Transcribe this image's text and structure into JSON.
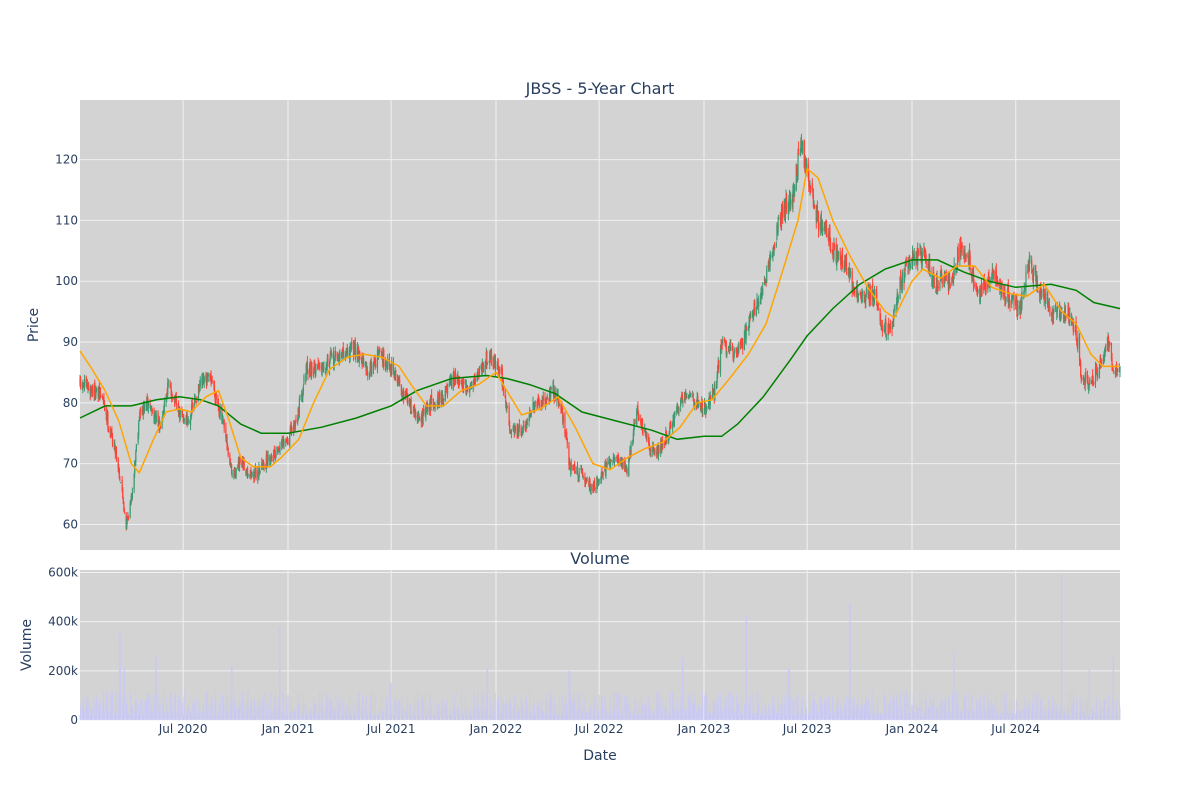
{
  "colors": {
    "plot_bg": "#d3d3d3",
    "grid": "#eef0f4",
    "text": "#2a3f5f",
    "up": "#3d9970",
    "down": "#ff4136",
    "ma_short": "#ffa500",
    "ma_long": "#008000",
    "volume": "#c9c9f2"
  },
  "chart_data": [
    {
      "type": "candlestick",
      "title": "JBSS - 5-Year Chart",
      "xlabel": "",
      "ylabel": "Price",
      "xlim": [
        "2020-01-02",
        "2024-12-31"
      ],
      "ylim": [
        55.8,
        129.8
      ],
      "grid": true,
      "x_ticks": [
        "2020-07-01",
        "2021-01-01",
        "2021-07-01",
        "2022-01-01",
        "2022-07-01",
        "2023-01-01",
        "2023-07-01",
        "2024-01-01",
        "2024-07-01"
      ],
      "y_ticks": [
        60,
        70,
        80,
        90,
        100,
        110,
        120
      ],
      "y_tick_labels": [
        "60",
        "70",
        "80",
        "90",
        "100",
        "110",
        "120"
      ],
      "close_path": [
        [
          "2020-01-02",
          83
        ],
        [
          "2020-01-25",
          82
        ],
        [
          "2020-02-10",
          81
        ],
        [
          "2020-02-25",
          75
        ],
        [
          "2020-03-05",
          72
        ],
        [
          "2020-03-15",
          66
        ],
        [
          "2020-03-23",
          60
        ],
        [
          "2020-04-01",
          64
        ],
        [
          "2020-04-15",
          78
        ],
        [
          "2020-05-01",
          80
        ],
        [
          "2020-05-20",
          76
        ],
        [
          "2020-06-05",
          83
        ],
        [
          "2020-06-25",
          78
        ],
        [
          "2020-07-10",
          77
        ],
        [
          "2020-08-01",
          83
        ],
        [
          "2020-08-20",
          84
        ],
        [
          "2020-09-10",
          76
        ],
        [
          "2020-09-25",
          68
        ],
        [
          "2020-10-10",
          70
        ],
        [
          "2020-11-01",
          68
        ],
        [
          "2020-11-20",
          70
        ],
        [
          "2020-12-10",
          72
        ],
        [
          "2021-01-01",
          74
        ],
        [
          "2021-01-15",
          77
        ],
        [
          "2021-02-01",
          85
        ],
        [
          "2021-02-20",
          86
        ],
        [
          "2021-03-15",
          87
        ],
        [
          "2021-04-10",
          88
        ],
        [
          "2021-05-01",
          89
        ],
        [
          "2021-05-20",
          85
        ],
        [
          "2021-06-10",
          88
        ],
        [
          "2021-07-01",
          86
        ],
        [
          "2021-07-15",
          83
        ],
        [
          "2021-08-01",
          80
        ],
        [
          "2021-08-20",
          77
        ],
        [
          "2021-09-10",
          80
        ],
        [
          "2021-10-01",
          81
        ],
        [
          "2021-10-20",
          84
        ],
        [
          "2021-11-10",
          82
        ],
        [
          "2021-12-01",
          85
        ],
        [
          "2021-12-20",
          88
        ],
        [
          "2022-01-10",
          85
        ],
        [
          "2022-01-25",
          76
        ],
        [
          "2022-02-15",
          75
        ],
        [
          "2022-03-05",
          79
        ],
        [
          "2022-03-25",
          80
        ],
        [
          "2022-04-10",
          82
        ],
        [
          "2022-04-25",
          80
        ],
        [
          "2022-05-10",
          70
        ],
        [
          "2022-06-01",
          68
        ],
        [
          "2022-06-20",
          66
        ],
        [
          "2022-07-10",
          69
        ],
        [
          "2022-08-01",
          71
        ],
        [
          "2022-08-20",
          69
        ],
        [
          "2022-09-05",
          79
        ],
        [
          "2022-09-25",
          73
        ],
        [
          "2022-10-10",
          72
        ],
        [
          "2022-11-01",
          75
        ],
        [
          "2022-11-15",
          79
        ],
        [
          "2022-12-01",
          82
        ],
        [
          "2022-12-20",
          80
        ],
        [
          "2023-01-05",
          79
        ],
        [
          "2023-01-20",
          82
        ],
        [
          "2023-02-01",
          90
        ],
        [
          "2023-02-20",
          88
        ],
        [
          "2023-03-10",
          90
        ],
        [
          "2023-03-25",
          95
        ],
        [
          "2023-04-15",
          98
        ],
        [
          "2023-05-01",
          105
        ],
        [
          "2023-05-20",
          112
        ],
        [
          "2023-06-05",
          113
        ],
        [
          "2023-06-20",
          123
        ],
        [
          "2023-07-05",
          116
        ],
        [
          "2023-07-20",
          110
        ],
        [
          "2023-08-05",
          108
        ],
        [
          "2023-08-20",
          104
        ],
        [
          "2023-09-05",
          103
        ],
        [
          "2023-09-20",
          99
        ],
        [
          "2023-10-05",
          97
        ],
        [
          "2023-10-25",
          98
        ],
        [
          "2023-11-10",
          93
        ],
        [
          "2023-11-25",
          92
        ],
        [
          "2023-12-10",
          99
        ],
        [
          "2023-12-25",
          103
        ],
        [
          "2024-01-10",
          104
        ],
        [
          "2024-01-25",
          104
        ],
        [
          "2024-02-10",
          99
        ],
        [
          "2024-02-25",
          101
        ],
        [
          "2024-03-10",
          99
        ],
        [
          "2024-03-25",
          106
        ],
        [
          "2024-04-10",
          104
        ],
        [
          "2024-04-25",
          97
        ],
        [
          "2024-05-10",
          100
        ],
        [
          "2024-05-25",
          101
        ],
        [
          "2024-06-10",
          98
        ],
        [
          "2024-06-25",
          97
        ],
        [
          "2024-07-10",
          96
        ],
        [
          "2024-07-25",
          103
        ],
        [
          "2024-08-10",
          99
        ],
        [
          "2024-08-20",
          98
        ],
        [
          "2024-09-01",
          94
        ],
        [
          "2024-09-15",
          95
        ],
        [
          "2024-10-01",
          95
        ],
        [
          "2024-10-15",
          92
        ],
        [
          "2024-10-25",
          84
        ],
        [
          "2024-11-10",
          83
        ],
        [
          "2024-11-25",
          86
        ],
        [
          "2024-12-10",
          90
        ],
        [
          "2024-12-20",
          85
        ],
        [
          "2024-12-31",
          85
        ]
      ],
      "series": [
        {
          "values": [
            [
              "2020-01-02",
              88.5
            ],
            [
              "2020-01-20",
              86
            ],
            [
              "2020-02-15",
              82
            ],
            [
              "2020-03-10",
              77
            ],
            [
              "2020-04-01",
              70
            ],
            [
              "2020-04-15",
              68.5
            ],
            [
              "2020-05-10",
              74
            ],
            [
              "2020-06-01",
              78.5
            ],
            [
              "2020-06-25",
              79
            ],
            [
              "2020-07-15",
              78.5
            ],
            [
              "2020-08-10",
              81
            ],
            [
              "2020-09-01",
              82
            ],
            [
              "2020-09-20",
              77
            ],
            [
              "2020-10-10",
              71
            ],
            [
              "2020-11-01",
              69.5
            ],
            [
              "2020-12-01",
              69.5
            ],
            [
              "2020-12-20",
              71
            ],
            [
              "2021-01-20",
              74
            ],
            [
              "2021-02-15",
              80
            ],
            [
              "2021-03-15",
              85.5
            ],
            [
              "2021-04-15",
              87.5
            ],
            [
              "2021-05-15",
              88
            ],
            [
              "2021-06-15",
              87.5
            ],
            [
              "2021-07-15",
              86
            ],
            [
              "2021-08-05",
              83
            ],
            [
              "2021-09-01",
              79.5
            ],
            [
              "2021-10-01",
              79.5
            ],
            [
              "2021-11-01",
              82
            ],
            [
              "2021-12-01",
              83
            ],
            [
              "2022-01-01",
              85
            ],
            [
              "2022-01-20",
              82
            ],
            [
              "2022-02-15",
              78
            ],
            [
              "2022-03-20",
              79
            ],
            [
              "2022-04-20",
              81
            ],
            [
              "2022-05-20",
              76
            ],
            [
              "2022-06-20",
              70
            ],
            [
              "2022-07-20",
              69
            ],
            [
              "2022-08-20",
              71
            ],
            [
              "2022-09-20",
              72.5
            ],
            [
              "2022-10-20",
              73.5
            ],
            [
              "2022-11-20",
              76
            ],
            [
              "2022-12-20",
              80
            ],
            [
              "2023-01-15",
              80.5
            ],
            [
              "2023-02-15",
              84
            ],
            [
              "2023-03-20",
              88
            ],
            [
              "2023-04-20",
              93
            ],
            [
              "2023-05-20",
              102
            ],
            [
              "2023-06-15",
              110
            ],
            [
              "2023-07-01",
              118.5
            ],
            [
              "2023-07-20",
              117
            ],
            [
              "2023-08-15",
              110
            ],
            [
              "2023-09-15",
              104
            ],
            [
              "2023-10-15",
              99
            ],
            [
              "2023-11-15",
              95
            ],
            [
              "2023-12-01",
              94
            ],
            [
              "2024-01-01",
              100
            ],
            [
              "2024-01-20",
              102
            ],
            [
              "2024-02-20",
              100.5
            ],
            [
              "2024-03-20",
              102.5
            ],
            [
              "2024-04-20",
              102.5
            ],
            [
              "2024-05-20",
              99
            ],
            [
              "2024-06-20",
              98
            ],
            [
              "2024-07-20",
              97.5
            ],
            [
              "2024-08-20",
              99.5
            ],
            [
              "2024-09-20",
              95
            ],
            [
              "2024-10-15",
              93
            ],
            [
              "2024-11-10",
              88
            ],
            [
              "2024-12-01",
              86
            ],
            [
              "2024-12-31",
              86
            ]
          ]
        },
        {
          "values": [
            [
              "2020-01-02",
              77.5
            ],
            [
              "2020-02-15",
              79.5
            ],
            [
              "2020-04-01",
              79.5
            ],
            [
              "2020-05-15",
              80.5
            ],
            [
              "2020-06-25",
              81
            ],
            [
              "2020-08-01",
              80.5
            ],
            [
              "2020-09-01",
              79.5
            ],
            [
              "2020-10-10",
              76.5
            ],
            [
              "2020-11-15",
              75
            ],
            [
              "2021-01-01",
              75
            ],
            [
              "2021-03-01",
              76
            ],
            [
              "2021-05-01",
              77.5
            ],
            [
              "2021-07-01",
              79.5
            ],
            [
              "2021-08-15",
              82
            ],
            [
              "2021-10-15",
              84
            ],
            [
              "2021-12-15",
              84.5
            ],
            [
              "2022-01-20",
              84
            ],
            [
              "2022-03-01",
              83
            ],
            [
              "2022-04-15",
              81.5
            ],
            [
              "2022-06-01",
              78.5
            ],
            [
              "2022-08-01",
              77
            ],
            [
              "2022-10-01",
              75.5
            ],
            [
              "2022-11-15",
              74
            ],
            [
              "2023-01-01",
              74.5
            ],
            [
              "2023-02-01",
              74.5
            ],
            [
              "2023-03-01",
              76.5
            ],
            [
              "2023-04-15",
              81
            ],
            [
              "2023-06-01",
              87
            ],
            [
              "2023-07-01",
              91
            ],
            [
              "2023-08-15",
              95.5
            ],
            [
              "2023-10-01",
              99.5
            ],
            [
              "2023-11-15",
              102
            ],
            [
              "2024-01-01",
              103.5
            ],
            [
              "2024-02-15",
              103.5
            ],
            [
              "2024-04-01",
              101.5
            ],
            [
              "2024-05-15",
              100
            ],
            [
              "2024-07-01",
              99
            ],
            [
              "2024-09-01",
              99.5
            ],
            [
              "2024-10-15",
              98.5
            ],
            [
              "2024-11-15",
              96.5
            ],
            [
              "2024-12-31",
              95.5
            ]
          ]
        }
      ]
    },
    {
      "type": "bar",
      "title": "Volume",
      "xlabel": "Date",
      "ylabel": "Volume",
      "xlim": [
        "2020-01-02",
        "2024-12-31"
      ],
      "ylim": [
        0,
        610000
      ],
      "grid": true,
      "y_ticks": [
        0,
        200000,
        400000,
        600000
      ],
      "y_tick_labels": [
        "0",
        "200k",
        "400k",
        "600k"
      ],
      "x_ticks": [
        "2020-07-01",
        "2021-01-01",
        "2021-07-01",
        "2022-01-01",
        "2022-07-01",
        "2023-01-01",
        "2023-07-01",
        "2024-01-01",
        "2024-07-01"
      ],
      "x_tick_labels": [
        "Jul 2020",
        "Jan 2021",
        "Jul 2021",
        "Jan 2022",
        "Jul 2022",
        "Jan 2023",
        "Jul 2023",
        "Jan 2024",
        "Jul 2024"
      ],
      "typical_range": [
        20000,
        120000
      ],
      "spikes": [
        [
          "2020-03-12",
          355000
        ],
        [
          "2020-03-20",
          210000
        ],
        [
          "2020-05-15",
          260000
        ],
        [
          "2020-09-25",
          225000
        ],
        [
          "2020-12-18",
          375000
        ],
        [
          "2021-06-30",
          150000
        ],
        [
          "2021-12-17",
          210000
        ],
        [
          "2022-05-10",
          200000
        ],
        [
          "2022-11-25",
          255000
        ],
        [
          "2023-03-17",
          420000
        ],
        [
          "2023-05-30",
          210000
        ],
        [
          "2023-09-15",
          475000
        ],
        [
          "2024-03-15",
          275000
        ],
        [
          "2024-09-20",
          590000
        ],
        [
          "2024-11-08",
          205000
        ],
        [
          "2024-12-20",
          265000
        ]
      ]
    }
  ]
}
